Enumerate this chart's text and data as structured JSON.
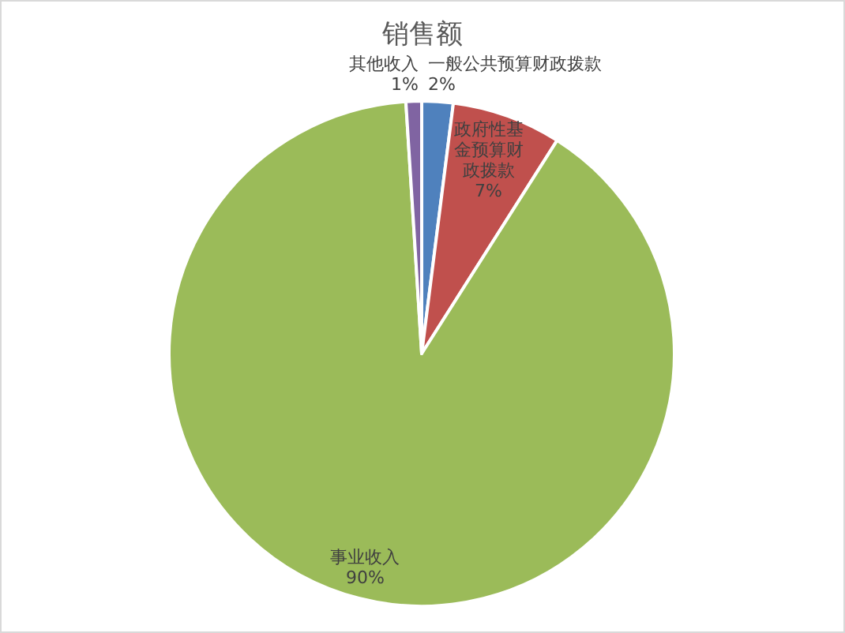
{
  "chart_data": {
    "type": "pie",
    "title": "销售额",
    "categories": [
      "一般公共预算财政拨款",
      "政府性基金预算财政拨款",
      "事业收入",
      "其他收入"
    ],
    "values": [
      2,
      7,
      90,
      1
    ],
    "value_labels": [
      "2%",
      "7%",
      "90%",
      "1%"
    ],
    "colors": [
      "#4f81bd",
      "#c0504d",
      "#9bbb59",
      "#8064a2"
    ]
  }
}
